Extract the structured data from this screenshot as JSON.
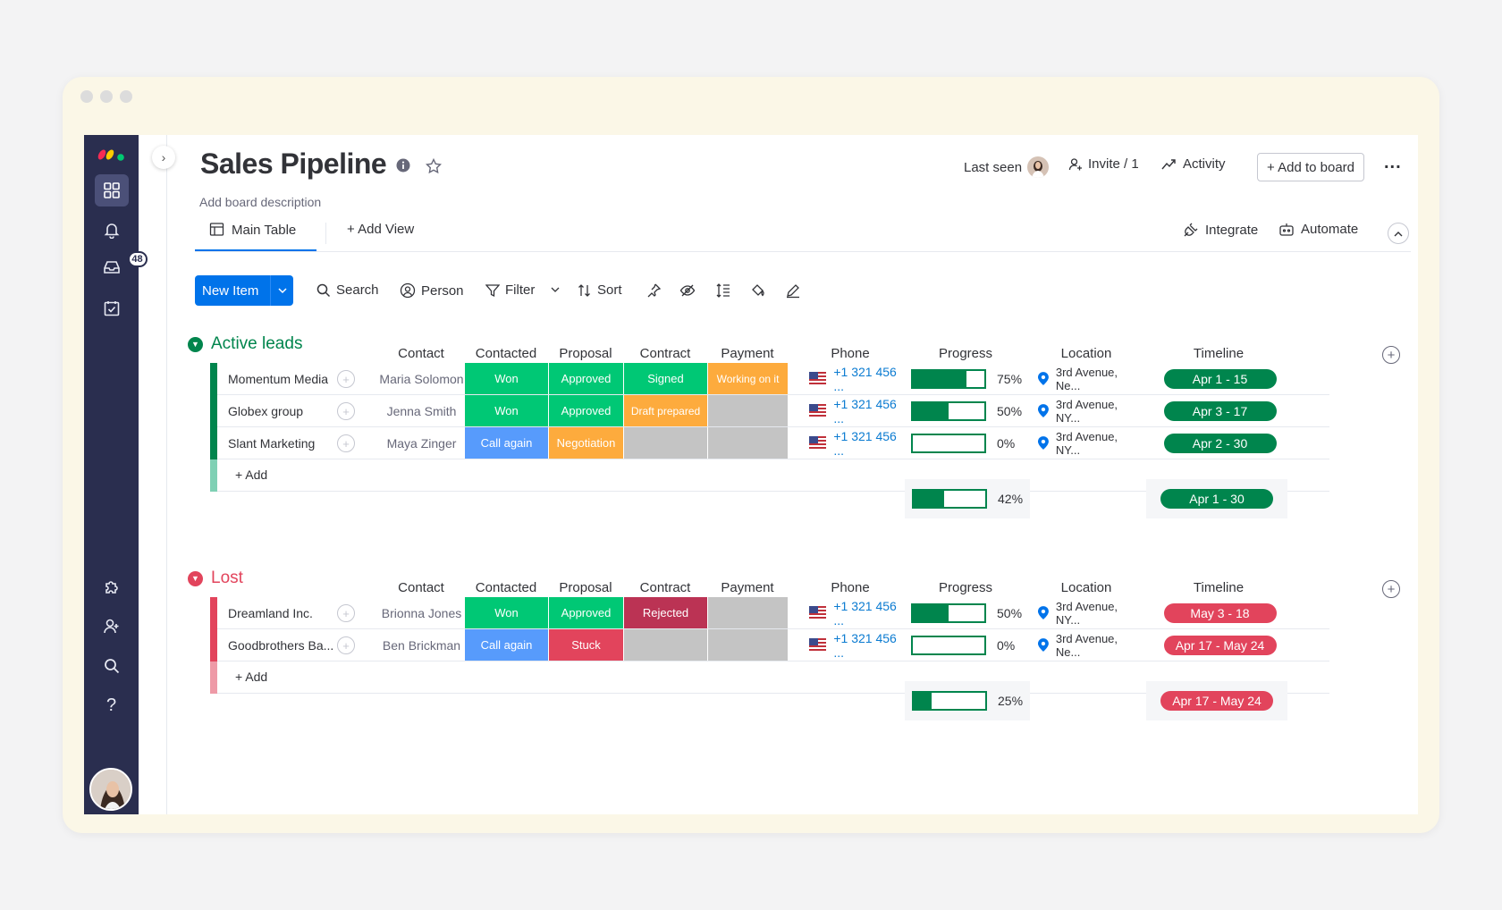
{
  "board": {
    "title": "Sales Pipeline",
    "description": "Add board description"
  },
  "header": {
    "last_seen": "Last seen",
    "invite": "Invite / 1",
    "activity": "Activity",
    "add_to_board": "+ Add to board",
    "more": "..."
  },
  "sidebar": {
    "inbox_badge": "48"
  },
  "tabs": {
    "main_table": "Main Table",
    "add_view": "+ Add View",
    "integrate": "Integrate",
    "automate": "Automate"
  },
  "toolbar": {
    "new_item": "New Item",
    "search": "Search",
    "person": "Person",
    "filter": "Filter",
    "sort": "Sort"
  },
  "columns": [
    "Contact",
    "Contacted",
    "Proposal",
    "Contract",
    "Payment",
    "Phone",
    "Progress",
    "Location",
    "Timeline"
  ],
  "colors": {
    "green_status": "#00c875",
    "blue_status": "#579bfc",
    "orange_status": "#fdab3d",
    "red_status": "#e2445c",
    "darkred_status": "#bb3354",
    "empty_status": "#c4c4c4",
    "group_green": "#00854d",
    "group_red": "#e2445c",
    "primary": "#0073ea"
  },
  "groups": [
    {
      "name": "Active leads",
      "color": "#00854d",
      "add_label": "+ Add",
      "rows": [
        {
          "name": "Momentum Media",
          "contact": "Maria Solomon",
          "contacted": "Won",
          "proposal": "Approved",
          "contract": "Signed",
          "payment": "Working on it",
          "phone": "+1 321 456 ...",
          "progress": "75%",
          "progress_value": 0.75,
          "location": "3rd Avenue, Ne...",
          "timeline": "Apr 1 - 15"
        },
        {
          "name": "Globex group",
          "contact": "Jenna Smith",
          "contacted": "Won",
          "proposal": "Approved",
          "contract": "Draft prepared",
          "payment": "",
          "phone": "+1 321 456 ...",
          "progress": "50%",
          "progress_value": 0.5,
          "location": "3rd Avenue, NY...",
          "timeline": "Apr 3 - 17"
        },
        {
          "name": "Slant Marketing",
          "contact": "Maya Zinger",
          "contacted": "Call again",
          "proposal": "Negotiation",
          "contract": "",
          "payment": "",
          "phone": "+1 321 456 ...",
          "progress": "0%",
          "progress_value": 0,
          "location": "3rd Avenue, NY...",
          "timeline": "Apr 2 - 30"
        }
      ],
      "summary": {
        "progress": "42%",
        "progress_value": 0.42,
        "timeline": "Apr 1 - 30"
      }
    },
    {
      "name": "Lost",
      "color": "#e2445c",
      "add_label": "+ Add",
      "rows": [
        {
          "name": "Dreamland Inc.",
          "contact": "Brionna Jones",
          "contacted": "Won",
          "proposal": "Approved",
          "contract": "Rejected",
          "payment": "",
          "phone": "+1 321 456 ...",
          "progress": "50%",
          "progress_value": 0.5,
          "location": "3rd Avenue, NY...",
          "timeline": "May 3 - 18"
        },
        {
          "name": "Goodbrothers Ba...",
          "contact": "Ben Brickman",
          "contacted": "Call again",
          "proposal": "Stuck",
          "contract": "",
          "payment": "",
          "phone": "+1 321 456 ...",
          "progress": "0%",
          "progress_value": 0,
          "location": "3rd Avenue, Ne...",
          "timeline": "Apr 17 - May 24"
        }
      ],
      "summary": {
        "progress": "25%",
        "progress_value": 0.25,
        "timeline": "Apr 17 - May 24"
      }
    }
  ]
}
